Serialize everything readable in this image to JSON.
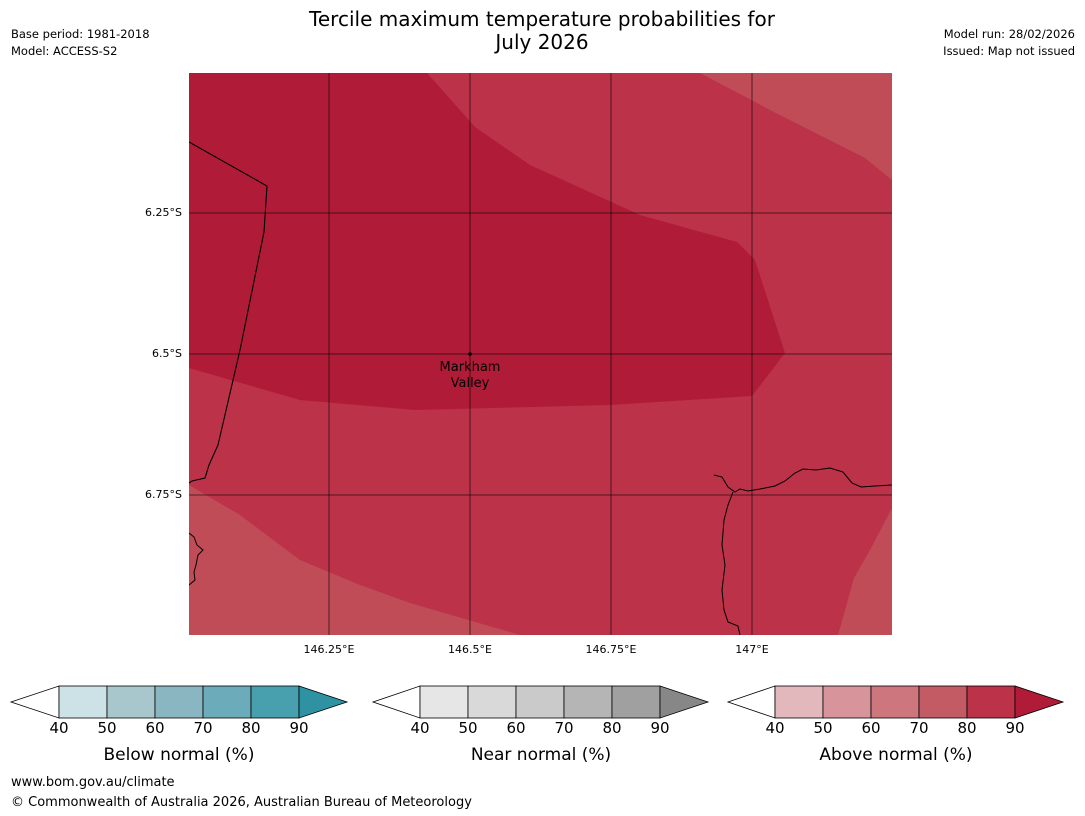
{
  "title": {
    "line1": "Tercile maximum temperature probabilities for",
    "line2": "July 2026"
  },
  "meta_left": {
    "base_period": "Base period: 1981-2018",
    "model": "Model: ACCESS-S2"
  },
  "meta_right": {
    "model_run": "Model run: 28/02/2026",
    "issued": "Issued: Map not issued"
  },
  "map": {
    "lat_labels": [
      "6.25°S",
      "6.5°S",
      "6.75°S"
    ],
    "lon_labels": [
      "146.25°E",
      "146.5°E",
      "146.75°E",
      "147°E"
    ],
    "place": {
      "name_line1": "Markham",
      "name_line2": "Valley"
    },
    "colors": {
      "above_90": "#b01c37",
      "above_80": "#bb3249",
      "above_70": "#c04c57",
      "grid": "#000000",
      "coast": "#000000"
    }
  },
  "legends": [
    {
      "title": "Below normal (%)",
      "ticks": [
        "40",
        "50",
        "60",
        "70",
        "80",
        "90"
      ],
      "colors": [
        "#cce2e7",
        "#a8c7cc",
        "#8ab6c1",
        "#6cacba",
        "#48a0ae",
        "#2e92a3"
      ]
    },
    {
      "title": "Near normal (%)",
      "ticks": [
        "40",
        "50",
        "60",
        "70",
        "80",
        "90"
      ],
      "colors": [
        "#e6e6e6",
        "#d9d9d9",
        "#cacaca",
        "#b5b5b5",
        "#a0a0a0",
        "#878787"
      ]
    },
    {
      "title": "Above normal (%)",
      "ticks": [
        "40",
        "50",
        "60",
        "70",
        "80",
        "90"
      ],
      "colors": [
        "#e2b8bd",
        "#d8949b",
        "#cd767e",
        "#c35b65",
        "#bb3249",
        "#b01c37"
      ]
    }
  ],
  "footer": {
    "url": "www.bom.gov.au/climate",
    "copyright": "© Commonwealth of Australia 2026, Australian Bureau of Meteorology"
  }
}
